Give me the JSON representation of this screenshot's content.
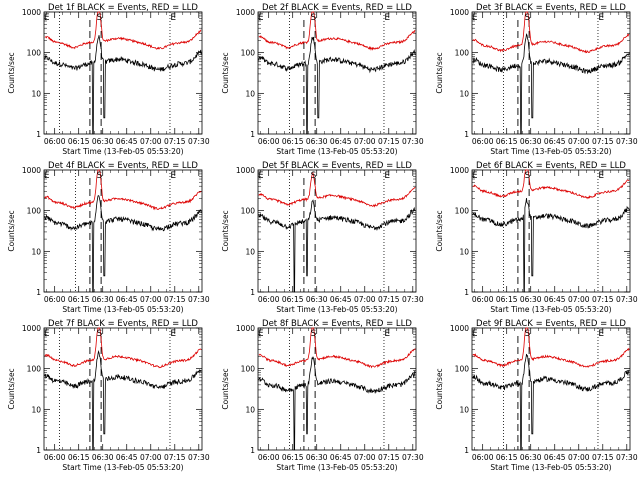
{
  "chart_data": {
    "type": "line",
    "y_axis_label": "Counts/sec",
    "x_axis_label": "Start Time (13-Feb-05 05:53:20)",
    "y_scale": "log",
    "ylim": [
      1,
      1000
    ],
    "y_ticks": [
      "1",
      "10",
      "100",
      "1000"
    ],
    "x_ticks": [
      "06:00",
      "06:15",
      "06:30",
      "06:45",
      "07:00",
      "07:15",
      "07:30"
    ],
    "x_tick_minutes": [
      360,
      375,
      390,
      405,
      420,
      435,
      450
    ],
    "xlim_minutes": [
      353.33,
      452
    ],
    "series_names": {
      "black": "Events",
      "red": "LLD"
    },
    "marker_labels": {
      "start": "E",
      "center": "S",
      "end": "E"
    },
    "series_colors": {
      "events": "#000000",
      "lld": "#dd0000"
    },
    "grid": false,
    "panels": [
      {
        "title": "Det 1f BLACK = Events, RED = LLD",
        "events_baseline": 55,
        "lld_baseline": 180,
        "spike_peak": 1000,
        "dashed_lines_min": [
          382,
          389
        ],
        "dotted_lines_min": [
          363,
          432
        ],
        "dropouts_min": [
          384,
          391
        ],
        "markers_min": {
          "start": 355,
          "center": 388,
          "end": 434
        }
      },
      {
        "title": "Det 2f BLACK = Events, RED = LLD",
        "events_baseline": 55,
        "lld_baseline": 180,
        "spike_peak": 1000,
        "dashed_lines_min": [
          382,
          389
        ],
        "dotted_lines_min": [
          373,
          432
        ],
        "dropouts_min": [
          384,
          391
        ],
        "markers_min": {
          "start": 355,
          "center": 388,
          "end": 434
        }
      },
      {
        "title": "Det 3f BLACK = Events, RED = LLD",
        "events_baseline": 50,
        "lld_baseline": 150,
        "spike_peak": 1000,
        "dashed_lines_min": [
          382,
          389
        ],
        "dotted_lines_min": [
          373,
          432
        ],
        "dropouts_min": [
          384,
          391
        ],
        "markers_min": {
          "start": 355,
          "center": 388,
          "end": 434
        }
      },
      {
        "title": "Det 4f BLACK = Events, RED = LLD",
        "events_baseline": 50,
        "lld_baseline": 160,
        "spike_peak": 1000,
        "dashed_lines_min": [
          382,
          389
        ],
        "dotted_lines_min": [
          373,
          432
        ],
        "dropouts_min": [
          384,
          391
        ],
        "markers_min": {
          "start": 355,
          "center": 388,
          "end": 434
        }
      },
      {
        "title": "Det 5f BLACK = Events, RED = LLD",
        "events_baseline": 55,
        "lld_baseline": 190,
        "spike_peak": 600,
        "dashed_lines_min": [
          382,
          389
        ],
        "dotted_lines_min": [
          373,
          432
        ],
        "dropouts_min": [
          376,
          384
        ],
        "markers_min": {
          "start": 355,
          "center": 388,
          "end": 434
        }
      },
      {
        "title": "Det 6f BLACK = Events, RED = LLD",
        "events_baseline": 60,
        "lld_baseline": 300,
        "spike_peak": 1000,
        "dashed_lines_min": [
          382,
          389
        ],
        "dotted_lines_min": [
          373,
          432
        ],
        "dropouts_min": [
          386,
          391
        ],
        "markers_min": {
          "start": 355,
          "center": 388,
          "end": 434
        }
      },
      {
        "title": "Det 7f BLACK = Events, RED = LLD",
        "events_baseline": 50,
        "lld_baseline": 160,
        "spike_peak": 1000,
        "dashed_lines_min": [
          382,
          389
        ],
        "dotted_lines_min": [
          363,
          432
        ],
        "dropouts_min": [
          384,
          391
        ],
        "markers_min": {
          "start": 355,
          "center": 388,
          "end": 434
        }
      },
      {
        "title": "Det 8f BLACK = Events, RED = LLD",
        "events_baseline": 40,
        "lld_baseline": 160,
        "spike_peak": 1000,
        "dashed_lines_min": [
          382,
          389
        ],
        "dotted_lines_min": [
          373,
          432
        ],
        "dropouts_min": [
          376,
          384
        ],
        "markers_min": {
          "start": 355,
          "center": 388,
          "end": 434
        }
      },
      {
        "title": "Det 9f BLACK = Events, RED = LLD",
        "events_baseline": 45,
        "lld_baseline": 160,
        "spike_peak": 1000,
        "dashed_lines_min": [
          382,
          389
        ],
        "dotted_lines_min": [
          373,
          432
        ],
        "dropouts_min": [
          384,
          391
        ],
        "markers_min": {
          "start": 355,
          "center": 388,
          "end": 434
        }
      }
    ]
  }
}
